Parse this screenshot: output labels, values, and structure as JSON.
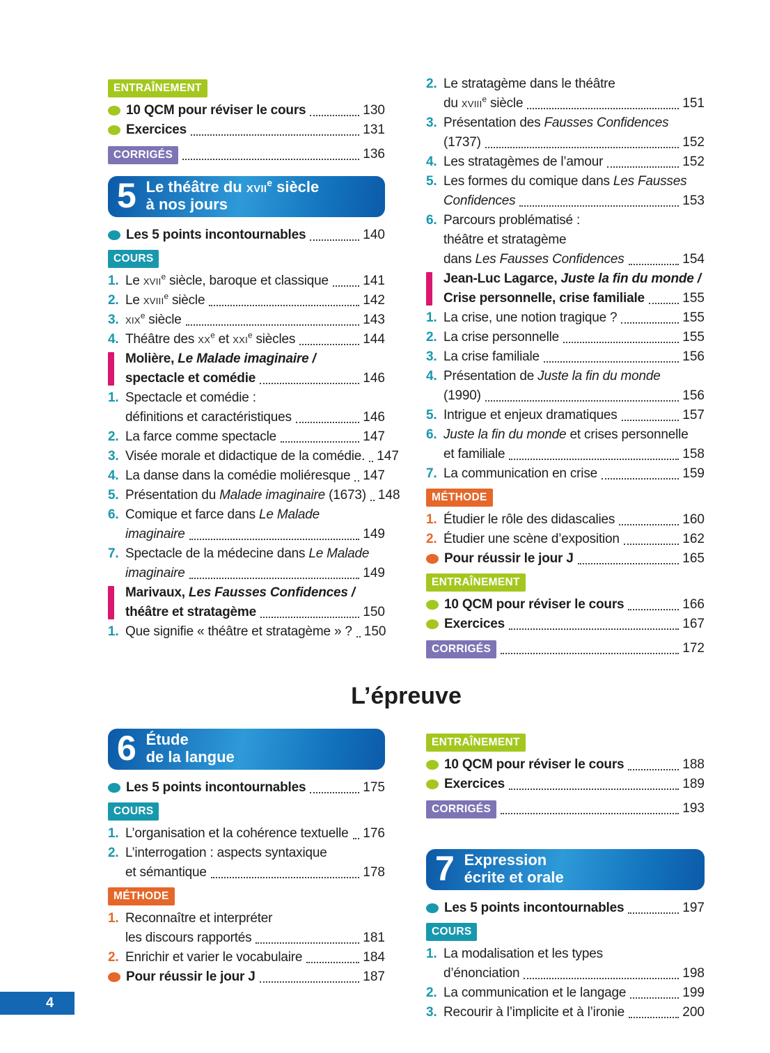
{
  "page": {
    "number": "4",
    "middle_title": "L’épreuve"
  },
  "colors": {
    "blue1": "#0c5aa8",
    "blue2": "#2e9ad8",
    "blue3": "#1272bc",
    "teal": "#1898ad",
    "lime": "#a4c71f",
    "purple": "#7d74b5",
    "orange": "#e5672a",
    "magenta": "#d9176f",
    "band": "#1467b2",
    "text": "#1d1d1b",
    "leader": "#3f3f3f"
  },
  "blocks": {
    "top_left": [
      {
        "type": "badge",
        "style": "lime",
        "name": "entrainement",
        "label": "ENTRAÎNEMENT"
      },
      {
        "type": "bullet",
        "color": "lime",
        "text": "10 QCM pour réviser le cours",
        "page": "130"
      },
      {
        "type": "bullet",
        "color": "lime",
        "text": "Exercices",
        "page": "131"
      },
      {
        "type": "badge",
        "style": "purple",
        "name": "corriges",
        "label": "CORRIGÉS",
        "page": "136"
      },
      {
        "type": "chapter",
        "number": "5",
        "lines": [
          [
            {
              "t": "Le théâtre du "
            },
            {
              "t": "xvii",
              "sc": 1
            },
            {
              "t": "e",
              "sup": 1
            },
            {
              "t": " siècle"
            }
          ],
          [
            {
              "t": "à nos jours"
            }
          ]
        ]
      },
      {
        "type": "bullet",
        "color": "teal",
        "text": "Les 5 points incontournables",
        "page": "140"
      },
      {
        "type": "badge",
        "style": "teal",
        "name": "cours",
        "label": "COURS"
      },
      {
        "type": "item",
        "num": "1.",
        "nc": "teal",
        "lines": [
          [
            {
              "t": "Le "
            },
            {
              "t": "xvii",
              "sc": 1
            },
            {
              "t": "e",
              "sup": 1
            },
            {
              "t": " siècle, baroque et classique"
            }
          ]
        ],
        "page": "141"
      },
      {
        "type": "item",
        "num": "2.",
        "nc": "teal",
        "lines": [
          [
            {
              "t": "Le "
            },
            {
              "t": "xviii",
              "sc": 1
            },
            {
              "t": "e",
              "sup": 1
            },
            {
              "t": " siècle"
            }
          ]
        ],
        "page": "142"
      },
      {
        "type": "item",
        "num": "3.",
        "nc": "teal",
        "lines": [
          [
            {
              "t": "xix",
              "sc": 1
            },
            {
              "t": "e",
              "sup": 1
            },
            {
              "t": " siècle"
            }
          ]
        ],
        "page": "143"
      },
      {
        "type": "item",
        "num": "4.",
        "nc": "teal",
        "lines": [
          [
            {
              "t": "Théâtre des "
            },
            {
              "t": "xx",
              "sc": 1
            },
            {
              "t": "e",
              "sup": 1
            },
            {
              "t": " et "
            },
            {
              "t": "xxi",
              "sc": 1
            },
            {
              "t": "e",
              "sup": 1
            },
            {
              "t": " siècles"
            }
          ]
        ],
        "page": "144"
      },
      {
        "type": "section",
        "lines": [
          [
            {
              "t": "Molière, "
            },
            {
              "t": "Le Malade imaginaire /",
              "i": 1
            }
          ],
          [
            {
              "t": "spectacle et comédie"
            }
          ]
        ],
        "page": "146"
      },
      {
        "type": "item",
        "num": "1.",
        "nc": "teal",
        "lines": [
          [
            {
              "t": "Spectacle et comédie :"
            }
          ],
          [
            {
              "t": "définitions et caractéristiques"
            }
          ]
        ],
        "page": "146"
      },
      {
        "type": "item",
        "num": "2.",
        "nc": "teal",
        "lines": [
          [
            {
              "t": "La farce comme spectacle"
            }
          ]
        ],
        "page": "147"
      },
      {
        "type": "item",
        "num": "3.",
        "nc": "teal",
        "lines": [
          [
            {
              "t": "Visée morale et didactique de la comédie."
            }
          ]
        ],
        "page": "147"
      },
      {
        "type": "item",
        "num": "4.",
        "nc": "teal",
        "lines": [
          [
            {
              "t": "La danse dans la comédie moliéresque"
            }
          ]
        ],
        "page": "147"
      },
      {
        "type": "item",
        "num": "5.",
        "nc": "teal",
        "lines": [
          [
            {
              "t": "Présentation du "
            },
            {
              "t": "Malade imaginaire",
              "i": 1
            },
            {
              "t": " (1673)"
            }
          ]
        ],
        "page": "148"
      },
      {
        "type": "item",
        "num": "6.",
        "nc": "teal",
        "lines": [
          [
            {
              "t": "Comique et farce dans "
            },
            {
              "t": "Le Malade",
              "i": 1
            }
          ],
          [
            {
              "t": "imaginaire",
              "i": 1
            }
          ]
        ],
        "page": "149"
      },
      {
        "type": "item",
        "num": "7.",
        "nc": "teal",
        "lines": [
          [
            {
              "t": "Spectacle de la médecine dans "
            },
            {
              "t": "Le Malade",
              "i": 1
            }
          ],
          [
            {
              "t": "imaginaire",
              "i": 1
            }
          ]
        ],
        "page": "149"
      },
      {
        "type": "section",
        "lines": [
          [
            {
              "t": "Marivaux, "
            },
            {
              "t": "Les Fausses Confidences /",
              "i": 1
            }
          ],
          [
            {
              "t": "théâtre et stratagème"
            }
          ]
        ],
        "page": "150"
      },
      {
        "type": "item",
        "num": "1.",
        "nc": "teal",
        "lines": [
          [
            {
              "t": "Que signifie « théâtre et stratagème » ?"
            }
          ]
        ],
        "page": "150"
      }
    ],
    "top_right": [
      {
        "type": "item",
        "num": "2.",
        "nc": "teal",
        "lines": [
          [
            {
              "t": "Le stratagème dans le théâtre"
            }
          ],
          [
            {
              "t": "du "
            },
            {
              "t": "xviii",
              "sc": 1
            },
            {
              "t": "e",
              "sup": 1
            },
            {
              "t": " siècle"
            }
          ]
        ],
        "page": "151"
      },
      {
        "type": "item",
        "num": "3.",
        "nc": "teal",
        "lines": [
          [
            {
              "t": "Présentation des "
            },
            {
              "t": "Fausses Confidences",
              "i": 1
            }
          ],
          [
            {
              "t": "(1737)"
            }
          ]
        ],
        "page": "152"
      },
      {
        "type": "item",
        "num": "4.",
        "nc": "teal",
        "lines": [
          [
            {
              "t": "Les stratagèmes de l’amour"
            }
          ]
        ],
        "page": "152"
      },
      {
        "type": "item",
        "num": "5.",
        "nc": "teal",
        "lines": [
          [
            {
              "t": "Les formes du comique dans "
            },
            {
              "t": "Les Fausses",
              "i": 1
            }
          ],
          [
            {
              "t": "Confidences",
              "i": 1
            }
          ]
        ],
        "page": "153"
      },
      {
        "type": "item",
        "num": "6.",
        "nc": "teal",
        "lines": [
          [
            {
              "t": "Parcours problématisé :"
            }
          ],
          [
            {
              "t": "théâtre et stratagème"
            }
          ],
          [
            {
              "t": "dans "
            },
            {
              "t": "Les Fausses Confidences",
              "i": 1
            }
          ]
        ],
        "page": "154"
      },
      {
        "type": "section",
        "lines": [
          [
            {
              "t": "Jean-Luc Lagarce, "
            },
            {
              "t": "Juste la fin du monde /",
              "i": 1
            }
          ],
          [
            {
              "t": "Crise personnelle, crise familiale"
            }
          ]
        ],
        "page": "155"
      },
      {
        "type": "item",
        "num": "1.",
        "nc": "teal",
        "lines": [
          [
            {
              "t": "La crise, une notion tragique ?"
            }
          ]
        ],
        "page": "155"
      },
      {
        "type": "item",
        "num": "2.",
        "nc": "teal",
        "lines": [
          [
            {
              "t": "La crise personnelle"
            }
          ]
        ],
        "page": "155"
      },
      {
        "type": "item",
        "num": "3.",
        "nc": "teal",
        "lines": [
          [
            {
              "t": "La crise familiale"
            }
          ]
        ],
        "page": "156"
      },
      {
        "type": "item",
        "num": "4.",
        "nc": "teal",
        "lines": [
          [
            {
              "t": "Présentation de "
            },
            {
              "t": "Juste la fin du monde",
              "i": 1
            }
          ],
          [
            {
              "t": "(1990)"
            }
          ]
        ],
        "page": "156"
      },
      {
        "type": "item",
        "num": "5.",
        "nc": "teal",
        "lines": [
          [
            {
              "t": "Intrigue et enjeux dramatiques"
            }
          ]
        ],
        "page": "157"
      },
      {
        "type": "item",
        "num": "6.",
        "nc": "teal",
        "lines": [
          [
            {
              "t": "Juste la fin du monde",
              "i": 1
            },
            {
              "t": " et crises personnelle"
            }
          ],
          [
            {
              "t": "et familiale"
            }
          ]
        ],
        "page": "158"
      },
      {
        "type": "item",
        "num": "7.",
        "nc": "teal",
        "lines": [
          [
            {
              "t": "La communication en crise"
            }
          ]
        ],
        "page": "159"
      },
      {
        "type": "badge",
        "style": "orange",
        "name": "methode",
        "label": "MÉTHODE"
      },
      {
        "type": "item",
        "num": "1.",
        "nc": "orange",
        "lines": [
          [
            {
              "t": "Étudier le rôle des didascalies"
            }
          ]
        ],
        "page": "160"
      },
      {
        "type": "item",
        "num": "2.",
        "nc": "orange",
        "lines": [
          [
            {
              "t": "Étudier une scène d’exposition"
            }
          ]
        ],
        "page": "162"
      },
      {
        "type": "bullet",
        "color": "orange",
        "text": "Pour réussir le jour J",
        "page": "165"
      },
      {
        "type": "badge",
        "style": "lime",
        "name": "entrainement",
        "label": "ENTRAÎNEMENT"
      },
      {
        "type": "bullet",
        "color": "lime",
        "text": "10 QCM pour réviser le cours",
        "page": "166"
      },
      {
        "type": "bullet",
        "color": "lime",
        "text": "Exercices",
        "page": "167"
      },
      {
        "type": "badge",
        "style": "purple",
        "name": "corriges",
        "label": "CORRIGÉS",
        "page": "172"
      }
    ],
    "bottom_left": [
      {
        "type": "chapter",
        "number": "6",
        "lines": [
          [
            {
              "t": "Étude"
            }
          ],
          [
            {
              "t": "de la langue"
            }
          ]
        ]
      },
      {
        "type": "bullet",
        "color": "teal",
        "text": "Les 5 points incontournables",
        "page": "175"
      },
      {
        "type": "badge",
        "style": "teal",
        "name": "cours",
        "label": "COURS"
      },
      {
        "type": "item",
        "num": "1.",
        "nc": "teal",
        "lines": [
          [
            {
              "t": "L’organisation et la cohérence textuelle"
            }
          ]
        ],
        "page": "176"
      },
      {
        "type": "item",
        "num": "2.",
        "nc": "teal",
        "lines": [
          [
            {
              "t": "L’interrogation : aspects syntaxique"
            }
          ],
          [
            {
              "t": "et sémantique"
            }
          ]
        ],
        "page": "178"
      },
      {
        "type": "badge",
        "style": "orange",
        "name": "methode",
        "label": "MÉTHODE"
      },
      {
        "type": "item",
        "num": "1.",
        "nc": "orange",
        "lines": [
          [
            {
              "t": "Reconnaître et interpréter"
            }
          ],
          [
            {
              "t": "les discours rapportés"
            }
          ]
        ],
        "page": "181"
      },
      {
        "type": "item",
        "num": "2.",
        "nc": "orange",
        "lines": [
          [
            {
              "t": "Enrichir et varier le vocabulaire"
            }
          ]
        ],
        "page": "184"
      },
      {
        "type": "bullet",
        "color": "orange",
        "text": "Pour réussir le jour J",
        "page": "187"
      }
    ],
    "bottom_right": [
      {
        "type": "badge",
        "style": "lime",
        "name": "entrainement",
        "label": "ENTRAÎNEMENT"
      },
      {
        "type": "bullet",
        "color": "lime",
        "text": "10 QCM pour réviser le cours",
        "page": "188"
      },
      {
        "type": "bullet",
        "color": "lime",
        "text": "Exercices",
        "page": "189"
      },
      {
        "type": "badge",
        "style": "purple",
        "name": "corriges",
        "label": "CORRIGÉS",
        "page": "193"
      },
      {
        "type": "chapter",
        "number": "7",
        "mt": 44,
        "lines": [
          [
            {
              "t": "Expression"
            }
          ],
          [
            {
              "t": "écrite et orale"
            }
          ]
        ]
      },
      {
        "type": "bullet",
        "color": "teal",
        "text": "Les 5 points incontournables",
        "page": "197"
      },
      {
        "type": "badge",
        "style": "teal",
        "name": "cours",
        "label": "COURS"
      },
      {
        "type": "item",
        "num": "1.",
        "nc": "teal",
        "lines": [
          [
            {
              "t": "La modalisation et les types"
            }
          ],
          [
            {
              "t": "d’énonciation"
            }
          ]
        ],
        "page": "198"
      },
      {
        "type": "item",
        "num": "2.",
        "nc": "teal",
        "lines": [
          [
            {
              "t": "La communication et le langage"
            }
          ]
        ],
        "page": "199"
      },
      {
        "type": "item",
        "num": "3.",
        "nc": "teal",
        "lines": [
          [
            {
              "t": "Recourir à l’implicite et à l’ironie"
            }
          ]
        ],
        "page": "200"
      }
    ]
  }
}
